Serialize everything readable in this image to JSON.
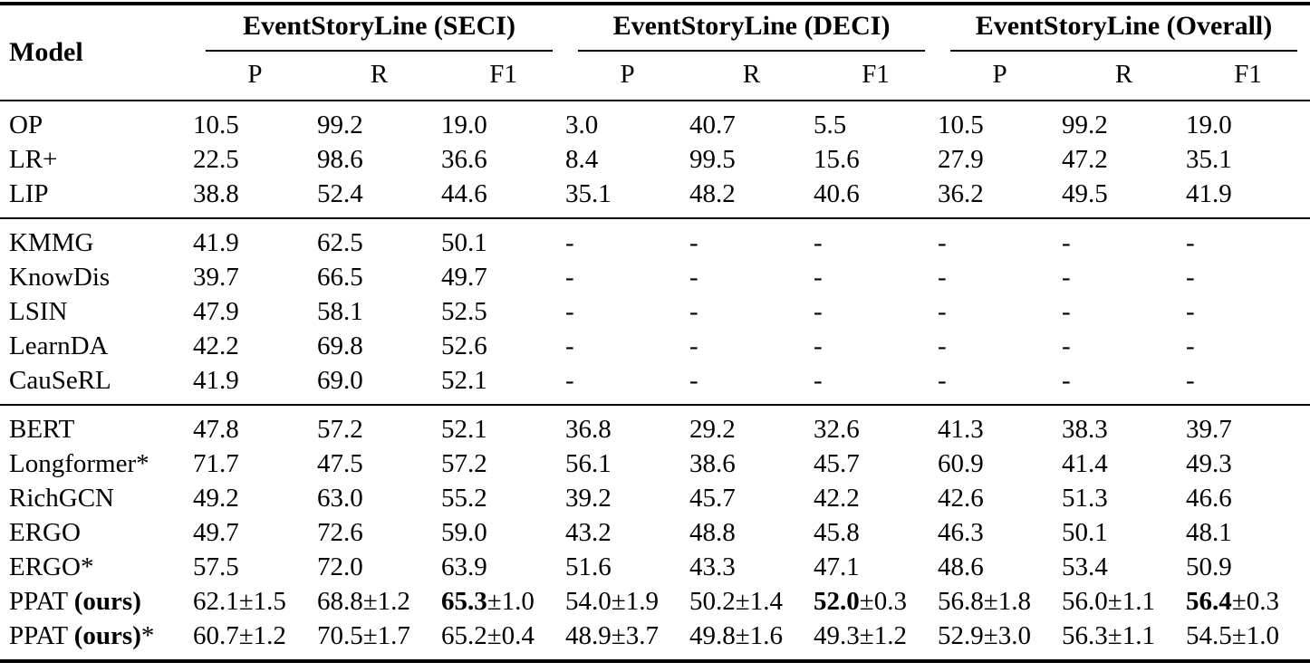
{
  "page": {
    "background_color": "#ffffff",
    "text_color": "#000000"
  },
  "table": {
    "model_header": "Model",
    "groups": [
      {
        "label": "EventStoryLine (SECI)",
        "cols": [
          "P",
          "R",
          "F1"
        ]
      },
      {
        "label": "EventStoryLine (DECI)",
        "cols": [
          "P",
          "R",
          "F1"
        ]
      },
      {
        "label": "EventStoryLine (Overall)",
        "cols": [
          "P",
          "R",
          "F1"
        ]
      }
    ],
    "sections": [
      {
        "rows": [
          {
            "model": "OP",
            "values": [
              "10.5",
              "99.2",
              "19.0",
              "3.0",
              "40.7",
              "5.5",
              "10.5",
              "99.2",
              "19.0"
            ]
          },
          {
            "model": "LR+",
            "values": [
              "22.5",
              "98.6",
              "36.6",
              "8.4",
              "99.5",
              "15.6",
              "27.9",
              "47.2",
              "35.1"
            ]
          },
          {
            "model": "LIP",
            "values": [
              "38.8",
              "52.4",
              "44.6",
              "35.1",
              "48.2",
              "40.6",
              "36.2",
              "49.5",
              "41.9"
            ]
          }
        ]
      },
      {
        "rows": [
          {
            "model": "KMMG",
            "values": [
              "41.9",
              "62.5",
              "50.1",
              "-",
              "-",
              "-",
              "-",
              "-",
              "-"
            ]
          },
          {
            "model": "KnowDis",
            "values": [
              "39.7",
              "66.5",
              "49.7",
              "-",
              "-",
              "-",
              "-",
              "-",
              "-"
            ]
          },
          {
            "model": "LSIN",
            "values": [
              "47.9",
              "58.1",
              "52.5",
              "-",
              "-",
              "-",
              "-",
              "-",
              "-"
            ]
          },
          {
            "model": "LearnDA",
            "values": [
              "42.2",
              "69.8",
              "52.6",
              "-",
              "-",
              "-",
              "-",
              "-",
              "-"
            ]
          },
          {
            "model": "CauSeRL",
            "values": [
              "41.9",
              "69.0",
              "52.1",
              "-",
              "-",
              "-",
              "-",
              "-",
              "-"
            ]
          }
        ]
      },
      {
        "rows": [
          {
            "model": "BERT",
            "values": [
              "47.8",
              "57.2",
              "52.1",
              "36.8",
              "29.2",
              "32.6",
              "41.3",
              "38.3",
              "39.7"
            ]
          },
          {
            "model": "Longformer*",
            "values": [
              "71.7",
              "47.5",
              "57.2",
              "56.1",
              "38.6",
              "45.7",
              "60.9",
              "41.4",
              "49.3"
            ]
          },
          {
            "model": "RichGCN",
            "values": [
              "49.2",
              "63.0",
              "55.2",
              "39.2",
              "45.7",
              "42.2",
              "42.6",
              "51.3",
              "46.6"
            ]
          },
          {
            "model": "ERGO",
            "values": [
              "49.7",
              "72.6",
              "59.0",
              "43.2",
              "48.8",
              "45.8",
              "46.3",
              "50.1",
              "48.1"
            ]
          },
          {
            "model": "ERGO*",
            "values": [
              "57.5",
              "72.0",
              "63.9",
              "51.6",
              "43.3",
              "47.1",
              "48.6",
              "53.4",
              "50.9"
            ]
          },
          {
            "model": "PPAT (ours)",
            "model_bold_part": "(ours)",
            "values": [
              "62.1±1.5",
              "68.8±1.2",
              "65.3±1.0",
              "54.0±1.9",
              "50.2±1.4",
              "52.0±0.3",
              "56.8±1.8",
              "56.0±1.1",
              "56.4±0.3"
            ],
            "bold_value_indices": [
              2,
              5,
              8
            ]
          },
          {
            "model": "PPAT (ours)*",
            "model_bold_part": "(ours)",
            "values": [
              "60.7±1.2",
              "70.5±1.7",
              "65.2±0.4",
              "48.9±3.7",
              "49.8±1.6",
              "49.3±1.2",
              "52.9±3.0",
              "56.3±1.1",
              "54.5±1.0"
            ]
          }
        ]
      }
    ]
  }
}
